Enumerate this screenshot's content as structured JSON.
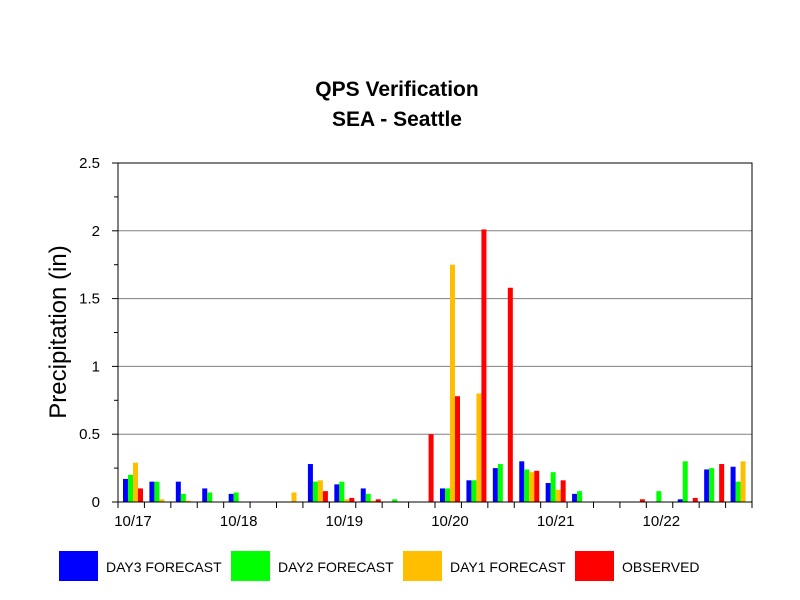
{
  "chart_data": {
    "type": "bar",
    "title": "QPS Verification",
    "subtitle": "SEA - Seattle",
    "ylabel": "Precipitation (in)",
    "xlabel": "",
    "ylim": [
      0,
      2.5
    ],
    "y_ticks": [
      "0",
      "0.5",
      "1",
      "1.5",
      "2",
      "2.5"
    ],
    "y_tick_values": [
      0,
      0.5,
      1,
      1.5,
      2,
      2.5
    ],
    "x_tick_labels": [
      {
        "label": "10/17",
        "period": 0
      },
      {
        "label": "10/18",
        "period": 4
      },
      {
        "label": "10/19",
        "period": 8
      },
      {
        "label": "10/20",
        "period": 12
      },
      {
        "label": "10/21",
        "period": 16
      },
      {
        "label": "10/22",
        "period": 20
      }
    ],
    "periods": 24,
    "grid": true,
    "legend_position": "bottom",
    "series": [
      {
        "name": "DAY3 FORECAST",
        "color": "#0000ff",
        "values": [
          0.17,
          0.15,
          0.15,
          0.1,
          0.06,
          0,
          0,
          0.28,
          0.13,
          0.1,
          0,
          0,
          0.1,
          0.16,
          0.25,
          0.3,
          0.14,
          0.06,
          0,
          0,
          0,
          0.02,
          0.24,
          0.26
        ]
      },
      {
        "name": "DAY2 FORECAST",
        "color": "#00ff00",
        "values": [
          0.2,
          0.15,
          0.06,
          0.07,
          0.07,
          0,
          0,
          0.15,
          0.15,
          0.06,
          0.02,
          0,
          0.1,
          0.16,
          0.28,
          0.24,
          0.22,
          0.08,
          0,
          0,
          0.08,
          0.3,
          0.25,
          0.15
        ]
      },
      {
        "name": "DAY1 FORECAST",
        "color": "#ffbf00",
        "values": [
          0.29,
          0.02,
          0.01,
          0,
          0,
          0,
          0.07,
          0.16,
          0.02,
          0.01,
          0,
          0,
          1.75,
          0.8,
          0,
          0.22,
          0.09,
          0,
          0,
          0,
          0,
          0,
          0,
          0.3
        ]
      },
      {
        "name": "OBSERVED",
        "color": "#ff0000",
        "values": [
          0.1,
          0,
          0,
          0,
          0,
          0,
          0,
          0.08,
          0.03,
          0.02,
          0,
          0.5,
          0.78,
          2.01,
          1.58,
          0.23,
          0.16,
          0,
          0,
          0.02,
          0,
          0.03,
          0.28,
          0
        ]
      }
    ]
  }
}
